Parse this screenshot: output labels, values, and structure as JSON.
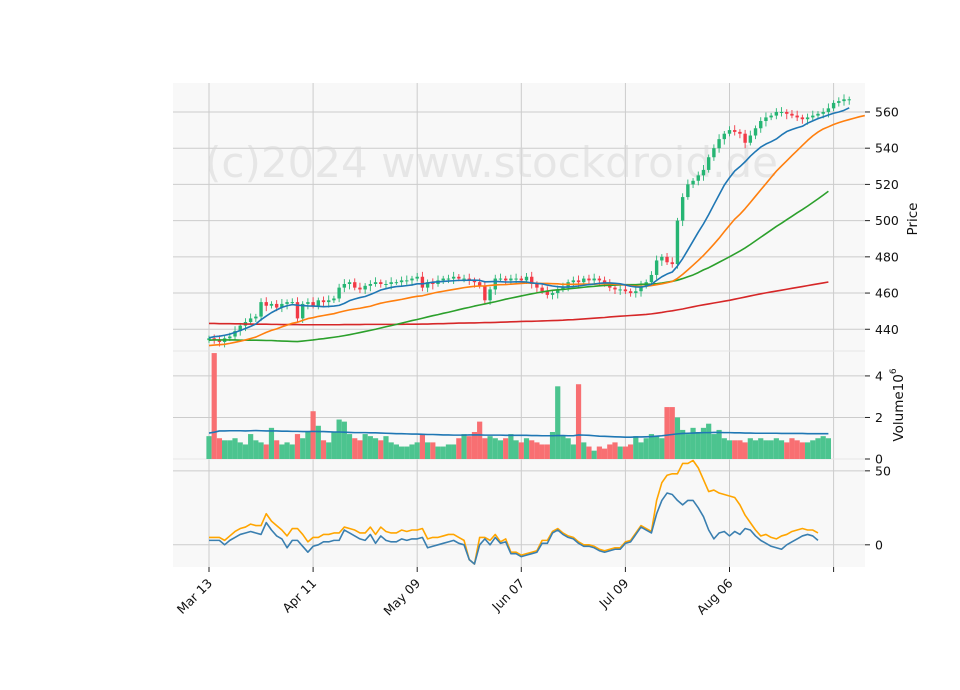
{
  "watermark": "(c)2024 www.stockdroid.de",
  "chart_data": {
    "type": "candlestick",
    "x_tick_labels": [
      "Mar 13",
      "Apr 11",
      "May 09",
      "Jun 07",
      "Jul 09",
      "Aug 06"
    ],
    "x_tick_index": [
      0,
      20,
      40,
      60,
      80,
      100,
      120
    ],
    "price_panel": {
      "ylabel": "Price",
      "ylim": [
        428,
        576
      ],
      "yticks": [
        440,
        460,
        480,
        500,
        520,
        540,
        560
      ],
      "close": [
        435,
        434,
        433,
        435,
        436,
        439,
        442,
        444,
        446,
        447,
        455,
        453,
        454,
        452,
        454,
        455,
        455,
        446,
        454,
        455,
        453,
        456,
        455,
        456,
        457,
        463,
        465,
        466,
        463,
        462,
        464,
        465,
        466,
        465,
        465,
        466,
        466,
        467,
        467,
        468,
        469,
        463,
        466,
        465,
        467,
        468,
        468,
        469,
        468,
        468,
        467,
        466,
        464,
        456,
        462,
        468,
        468,
        467,
        468,
        468,
        467,
        469,
        465,
        463,
        461,
        459,
        460,
        462,
        463,
        466,
        467,
        466,
        468,
        467,
        468,
        467,
        465,
        463,
        462,
        462,
        461,
        460,
        461,
        464,
        466,
        470,
        478,
        480,
        477,
        476,
        500,
        513,
        520,
        522,
        525,
        528,
        535,
        540,
        545,
        548,
        550,
        549,
        548,
        543,
        547,
        551,
        555,
        557,
        558,
        560,
        560,
        559,
        558,
        557,
        556,
        557,
        558,
        559,
        560,
        562,
        565,
        566,
        567,
        567
      ],
      "ma_short": [
        435.3,
        435.9,
        436.2,
        436.7,
        437.3,
        438.3,
        439.3,
        440.4,
        441.6,
        442.9,
        445.3,
        447.3,
        449.2,
        450.7,
        452.1,
        453.0,
        453.6,
        453.3,
        453.1,
        452.9,
        452.8,
        452.7,
        452.5,
        452.6,
        452.8,
        453.2,
        454.3,
        455.8,
        456.7,
        457.5,
        458.1,
        459.2,
        460.4,
        461.7,
        462.4,
        463.1,
        463.6,
        463.8,
        464.1,
        464.5,
        465.1,
        465.1,
        465.5,
        466.0,
        466.2,
        466.4,
        466.6,
        466.8,
        467.0,
        467.0,
        467.1,
        467.1,
        467.0,
        466.2,
        466.3,
        466.4,
        466.3,
        466.1,
        466.1,
        466.2,
        466.2,
        466.1,
        465.6,
        465.3,
        465.1,
        464.4,
        463.9,
        463.5,
        463.3,
        463.3,
        463.6,
        463.9,
        464.3,
        464.7,
        465.0,
        465.4,
        465.6,
        465.6,
        465.4,
        465.1,
        464.5,
        463.8,
        463.4,
        463.3,
        463.8,
        464.8,
        467.0,
        469.0,
        470.5,
        471.6,
        474.9,
        479.0,
        483.8,
        488.7,
        493.6,
        498.2,
        503.3,
        508.8,
        514.2,
        519.6,
        523.7,
        527.4,
        529.8,
        532.5,
        535.6,
        538.2,
        540.6,
        542.3,
        543.6,
        545.1,
        547.3,
        549.2,
        550.3,
        551.3,
        552.1,
        553.8,
        555.1,
        556.3,
        557.3,
        558.3,
        559.3,
        560.0,
        560.9,
        562.3
      ],
      "ma_mid": [
        431.0,
        431.3,
        431.5,
        431.7,
        432.2,
        432.8,
        433.4,
        434.1,
        434.9,
        435.7,
        437.0,
        438.3,
        439.4,
        440.2,
        441.3,
        442.3,
        443.3,
        443.9,
        444.9,
        445.9,
        446.4,
        447.1,
        447.6,
        448.1,
        448.6,
        449.4,
        450.1,
        450.7,
        451.2,
        451.6,
        452.2,
        452.7,
        453.6,
        454.4,
        455.0,
        455.5,
        456.0,
        456.5,
        457.1,
        457.7,
        458.2,
        458.5,
        459.2,
        459.9,
        460.5,
        461.0,
        461.5,
        462.0,
        462.5,
        463.0,
        463.4,
        463.7,
        463.9,
        463.9,
        464.2,
        464.5,
        464.6,
        464.7,
        464.9,
        465.1,
        465.3,
        465.5,
        465.5,
        465.4,
        465.3,
        465.3,
        465.2,
        465.1,
        464.8,
        464.8,
        464.8,
        464.9,
        465.0,
        464.9,
        464.9,
        465.1,
        465.2,
        465.1,
        464.9,
        464.7,
        464.5,
        464.1,
        463.8,
        463.7,
        463.8,
        464.1,
        464.6,
        465.1,
        465.7,
        466.4,
        468.1,
        470.3,
        472.8,
        475.4,
        478.0,
        480.8,
        483.8,
        487.0,
        490.3,
        493.9,
        497.4,
        500.8,
        503.5,
        506.6,
        510.0,
        513.5,
        517.0,
        520.4,
        523.9,
        527.3,
        530.2,
        533.0,
        535.9,
        538.7,
        541.5,
        544.3,
        546.8,
        548.9,
        550.6,
        551.8,
        553.1,
        554.1,
        555.0,
        555.8,
        556.6,
        557.4,
        558.0
      ],
      "ma_long": [
        434.0,
        434.1,
        434.1,
        434.1,
        434.1,
        434.1,
        434.0,
        434.0,
        434.0,
        434.0,
        433.9,
        433.8,
        433.8,
        433.6,
        433.5,
        433.4,
        433.3,
        433.2,
        433.5,
        433.8,
        434.1,
        434.5,
        434.8,
        435.2,
        435.6,
        436.0,
        436.5,
        437.0,
        437.6,
        438.2,
        438.8,
        439.4,
        440.0,
        440.7,
        441.4,
        442.0,
        442.7,
        443.4,
        444.1,
        444.8,
        445.4,
        446.1,
        446.8,
        447.5,
        448.1,
        448.8,
        449.4,
        450.1,
        450.8,
        451.5,
        452.1,
        452.8,
        453.4,
        454.0,
        454.6,
        455.2,
        455.9,
        456.6,
        457.2,
        457.8,
        458.4,
        459.0,
        459.6,
        460.1,
        460.6,
        461.1,
        461.5,
        461.8,
        462.0,
        462.3,
        462.6,
        462.9,
        463.2,
        463.5,
        463.7,
        464.0,
        464.2,
        464.3,
        464.4,
        464.5,
        464.6,
        464.6,
        464.6,
        464.8,
        464.9,
        465.0,
        465.2,
        465.5,
        466.0,
        466.5,
        467.1,
        468.0,
        469.0,
        470.0,
        471.3,
        472.8,
        474.0,
        475.5,
        477.0,
        478.5,
        480.0,
        481.6,
        483.2,
        484.9,
        486.8,
        488.8,
        490.8,
        492.8,
        494.8,
        496.8,
        498.6,
        500.5,
        502.4,
        504.3,
        506.1,
        508.0,
        510.0,
        512.0,
        514.1,
        516.2
      ],
      "ma_200": [
        443.2,
        443.2,
        443.1,
        443.1,
        443.1,
        443.0,
        443.0,
        442.9,
        442.9,
        442.8,
        442.8,
        442.8,
        442.7,
        442.7,
        442.6,
        442.6,
        442.6,
        442.6,
        442.5,
        442.5,
        442.5,
        442.5,
        442.5,
        442.5,
        442.5,
        442.5,
        442.6,
        442.6,
        442.6,
        442.6,
        442.7,
        442.7,
        442.7,
        442.7,
        442.7,
        442.7,
        442.7,
        442.7,
        442.8,
        442.8,
        442.8,
        442.9,
        442.9,
        443.0,
        443.1,
        443.1,
        443.2,
        443.3,
        443.4,
        443.4,
        443.5,
        443.5,
        443.6,
        443.7,
        443.7,
        443.8,
        443.9,
        444.0,
        444.1,
        444.2,
        444.3,
        444.4,
        444.4,
        444.5,
        444.6,
        444.7,
        444.8,
        444.9,
        445.0,
        445.2,
        445.3,
        445.5,
        445.7,
        445.9,
        446.1,
        446.3,
        446.5,
        446.8,
        447.0,
        447.2,
        447.4,
        447.6,
        447.8,
        448.0,
        448.2,
        448.5,
        448.9,
        449.3,
        449.8,
        450.2,
        450.7,
        451.2,
        451.8,
        452.4,
        453.0,
        453.5,
        454.0,
        454.5,
        455.0,
        455.5,
        456.0,
        456.6,
        457.2,
        457.8,
        458.4,
        459.0,
        459.6,
        460.1,
        460.6,
        461.1,
        461.6,
        462.1,
        462.6,
        463.1,
        463.6,
        464.1,
        464.6,
        465.1,
        465.6,
        466.1
      ]
    },
    "volume_panel": {
      "ylabel": "Volume",
      "ylabel_exponent": "10",
      "ylabel_exponent_power": "6",
      "ylim": [
        0,
        5.2
      ],
      "yticks": [
        0,
        2,
        4
      ],
      "volume": [
        1.1,
        5.1,
        1.0,
        0.9,
        0.9,
        1.0,
        0.8,
        0.7,
        1.2,
        0.9,
        0.8,
        0.7,
        1.5,
        0.9,
        0.7,
        0.8,
        0.7,
        1.2,
        1.0,
        1.3,
        2.3,
        1.6,
        0.9,
        0.8,
        1.3,
        1.9,
        1.8,
        1.2,
        1.0,
        0.9,
        1.2,
        1.1,
        1.0,
        0.9,
        1.1,
        0.8,
        0.7,
        0.6,
        0.6,
        0.7,
        0.8,
        1.2,
        0.8,
        0.8,
        0.6,
        0.6,
        0.7,
        0.7,
        1.0,
        1.2,
        1.1,
        1.3,
        1.8,
        1.0,
        1.1,
        1.0,
        0.9,
        1.0,
        1.2,
        0.9,
        0.8,
        1.0,
        0.9,
        0.8,
        0.7,
        0.7,
        1.3,
        3.5,
        1.1,
        1.0,
        0.7,
        3.6,
        0.8,
        0.6,
        0.4,
        0.6,
        0.5,
        0.7,
        0.8,
        0.6,
        0.6,
        0.7,
        1.1,
        0.8,
        1.0,
        1.2,
        1.1,
        1.0,
        2.5,
        2.5,
        2.0,
        1.4,
        1.2,
        1.5,
        1.3,
        1.5,
        1.7,
        1.2,
        1.4,
        1.0,
        0.9,
        0.9,
        0.9,
        0.8,
        1.0,
        0.9,
        1.0,
        0.9,
        0.9,
        1.0,
        0.9,
        0.8,
        1.0,
        0.9,
        0.8,
        0.8,
        0.9,
        1.0,
        1.1,
        1.0
      ],
      "vol_ma": [
        1.25,
        1.29,
        1.35,
        1.35,
        1.36,
        1.36,
        1.36,
        1.35,
        1.36,
        1.37,
        1.36,
        1.35,
        1.35,
        1.35,
        1.34,
        1.34,
        1.33,
        1.33,
        1.32,
        1.32,
        1.33,
        1.32,
        1.32,
        1.31,
        1.3,
        1.3,
        1.29,
        1.28,
        1.27,
        1.27,
        1.27,
        1.26,
        1.26,
        1.25,
        1.24,
        1.23,
        1.22,
        1.22,
        1.21,
        1.2,
        1.2,
        1.19,
        1.18,
        1.18,
        1.17,
        1.16,
        1.16,
        1.15,
        1.15,
        1.15,
        1.16,
        1.16,
        1.16,
        1.15,
        1.15,
        1.15,
        1.15,
        1.14,
        1.14,
        1.14,
        1.14,
        1.14,
        1.13,
        1.13,
        1.12,
        1.12,
        1.12,
        1.13,
        1.13,
        1.12,
        1.12,
        1.16,
        1.15,
        1.14,
        1.12,
        1.1,
        1.09,
        1.08,
        1.07,
        1.06,
        1.05,
        1.05,
        1.06,
        1.06,
        1.07,
        1.08,
        1.1,
        1.12,
        1.15,
        1.18,
        1.21,
        1.23,
        1.24,
        1.25,
        1.26,
        1.27,
        1.27,
        1.28,
        1.28,
        1.27,
        1.27,
        1.26,
        1.26,
        1.25,
        1.25,
        1.24,
        1.24,
        1.24,
        1.24,
        1.24,
        1.23,
        1.23,
        1.23,
        1.23,
        1.23,
        1.22,
        1.22,
        1.22,
        1.22,
        1.22
      ]
    },
    "indicator_panel": {
      "ylim": [
        -15,
        58
      ],
      "yticks": [
        0,
        50
      ],
      "line_a": [
        3,
        3,
        3,
        0,
        3,
        5,
        7,
        8,
        9,
        8,
        7,
        15,
        10,
        6,
        4,
        -2,
        3,
        3,
        -1,
        -5,
        -1,
        0,
        2,
        2,
        3,
        3,
        10,
        8,
        6,
        4,
        3,
        7,
        1,
        6,
        3,
        2,
        2,
        4,
        3,
        4,
        4,
        5,
        -2,
        -1,
        0,
        1,
        2,
        3,
        1,
        0,
        -10,
        -13,
        0,
        4,
        0,
        5,
        1,
        2,
        -6,
        -6,
        -8,
        -7,
        -6,
        -5,
        1,
        1,
        8,
        10,
        7,
        5,
        4,
        1,
        -1,
        -1,
        -2,
        -4,
        -5,
        -4,
        -3,
        -3,
        1,
        2,
        7,
        12,
        10,
        8,
        21,
        30,
        35,
        34,
        30,
        27,
        30,
        30,
        25,
        19,
        10,
        4,
        8,
        9,
        6,
        9,
        7,
        11,
        10,
        6,
        3,
        1,
        -1,
        -2,
        -3,
        0,
        2,
        4,
        6,
        7,
        6,
        3
      ],
      "line_b": [
        5,
        5,
        5,
        3,
        6,
        9,
        11,
        12,
        14,
        13,
        13,
        21,
        16,
        13,
        10,
        6,
        11,
        11,
        7,
        2,
        5,
        5,
        7,
        7,
        8,
        8,
        12,
        11,
        10,
        8,
        8,
        12,
        7,
        12,
        9,
        8,
        8,
        10,
        9,
        10,
        10,
        11,
        4,
        5,
        5,
        6,
        7,
        7,
        5,
        3,
        -10,
        -13,
        5,
        5,
        3,
        7,
        2,
        4,
        -5,
        -5,
        -7,
        -6,
        -5,
        -4,
        3,
        3,
        9,
        11,
        8,
        6,
        5,
        2,
        0,
        0,
        -1,
        -3,
        -4,
        -3,
        -2,
        -2,
        2,
        3,
        8,
        13,
        11,
        9,
        30,
        42,
        47,
        48,
        48,
        55,
        55,
        57,
        52,
        44,
        36,
        37,
        35,
        34,
        33,
        32,
        27,
        20,
        15,
        10,
        6,
        7,
        5,
        4,
        6,
        7,
        9,
        10,
        11,
        10,
        10,
        8
      ]
    },
    "colors": {
      "up": "#26b573",
      "down": "#f23a46",
      "vol_up": "#4cc48f",
      "vol_down": "#f86f72",
      "ma_short": "#1f77b4",
      "ma_mid": "#ff7f0e",
      "ma_long": "#2ca02c",
      "ma_200": "#d62728",
      "vol_ma": "#1f77b4",
      "line_a": "#3a7fb0",
      "line_b": "#ffa500",
      "grid": "#cccccc",
      "panel_bg": "#f8f8f8"
    }
  }
}
